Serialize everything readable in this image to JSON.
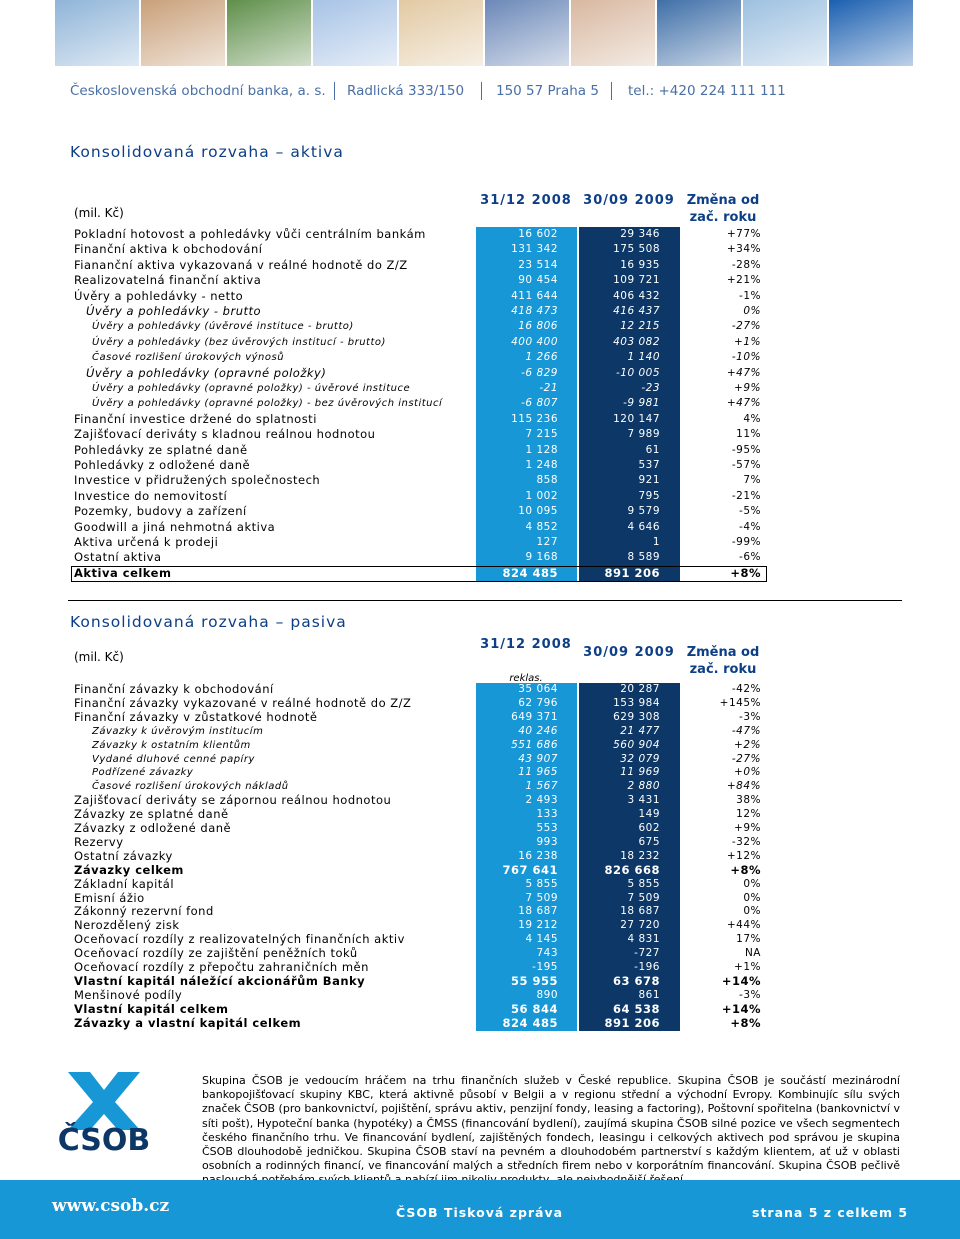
{
  "header": {
    "company": "Československá obchodní banka, a. s.",
    "address": "Radlická 333/150",
    "city": "150 57 Praha 5",
    "phone": "tel.: +420 224 111 111"
  },
  "assets": {
    "title": "Konsolidovaná rozvaha – aktiva",
    "columns": [
      "(mil. Kč)",
      "31/12 2008",
      "30/09 2009",
      "Změna od zač. roku"
    ],
    "rows": [
      [
        "Pokladní hotovost a pohledávky vůči centrálním bankám",
        "16 602",
        "29 346",
        "+77%"
      ],
      [
        "Finanční aktiva k obchodování",
        "131 342",
        "175 508",
        "+34%"
      ],
      [
        "Fiananční aktiva vykazovaná v reálné hodnotě do Z/Z",
        "23 514",
        "16 935",
        "-28%"
      ],
      [
        "Realizovatelná finanční aktiva",
        "90 454",
        "109 721",
        "+21%"
      ],
      [
        "Úvěry a pohledávky - netto",
        "411 644",
        "406 432",
        "-1%"
      ],
      [
        "Úvěry a pohledávky - brutto",
        "418 473",
        "416 437",
        "0%"
      ],
      [
        "Úvěry a pohledávky (úvěrové instituce - brutto)",
        "16 806",
        "12 215",
        "-27%"
      ],
      [
        "Úvěry a pohledávky (bez úvěrových institucí - brutto)",
        "400 400",
        "403 082",
        "+1%"
      ],
      [
        "Časové rozlišení úrokových výnosů",
        "1 266",
        "1 140",
        "-10%"
      ],
      [
        "Úvěry a pohledávky (opravné položky)",
        "-6 829",
        "-10 005",
        "+47%"
      ],
      [
        "Úvěry a pohledávky (opravné položky) - úvěrové instituce",
        "-21",
        "-23",
        "+9%"
      ],
      [
        "Úvěry a pohledávky (opravné položky) - bez úvěrových institucí",
        "-6 807",
        "-9 981",
        "+47%"
      ],
      [
        "Finanční investice držené do splatnosti",
        "115 236",
        "120 147",
        "4%"
      ],
      [
        "Zajišťovací deriváty s kladnou reálnou hodnotou",
        "7 215",
        "7 989",
        "11%"
      ],
      [
        "Pohledávky ze splatné daně",
        "1 128",
        "61",
        "-95%"
      ],
      [
        "Pohledávky z odložené daně",
        "1 248",
        "537",
        "-57%"
      ],
      [
        "Investice v přidružených společnostech",
        "858",
        "921",
        "7%"
      ],
      [
        "Investice do nemovitostí",
        "1 002",
        "795",
        "-21%"
      ],
      [
        "Pozemky, budovy a zařízení",
        "10 095",
        "9 579",
        "-5%"
      ],
      [
        "Goodwill a jiná nehmotná aktiva",
        "4 852",
        "4 646",
        "-4%"
      ],
      [
        "Aktiva určená k prodeji",
        "127",
        "1",
        "-99%"
      ],
      [
        "Ostatní aktiva",
        "9 168",
        "8 589",
        "-6%"
      ],
      [
        "Aktiva celkem",
        "824 485",
        "891 206",
        "+8%"
      ]
    ]
  },
  "liabilities": {
    "title": "Konsolidovaná rozvaha – pasiva",
    "columns": [
      "(mil. Kč)",
      "31/12 2008",
      "30/09 2009",
      "Změna od zač. roku"
    ],
    "column_note": "reklas.",
    "rows": [
      [
        "Finanční závazky k obchodování",
        "35 064",
        "20 287",
        "-42%"
      ],
      [
        "Finanční závazky vykazované v reálné hodnotě do Z/Z",
        "62 796",
        "153 984",
        "+145%"
      ],
      [
        "Finanční závazky v zůstatkové hodnotě",
        "649 371",
        "629 308",
        "-3%"
      ],
      [
        "Závazky k úvěrovým institucím",
        "40 246",
        "21 477",
        "-47%"
      ],
      [
        "Závazky k ostatním klientům",
        "551 686",
        "560 904",
        "+2%"
      ],
      [
        "Vydané dluhové cenné papíry",
        "43 907",
        "32 079",
        "-27%"
      ],
      [
        "Podřízené závazky",
        "11 965",
        "11 969",
        "+0%"
      ],
      [
        "Časové rozlišení úrokových nákladů",
        "1 567",
        "2 880",
        "+84%"
      ],
      [
        "Zajišťovací deriváty se zápornou reálnou hodnotou",
        "2 493",
        "3 431",
        "38%"
      ],
      [
        "Závazky ze splatné daně",
        "133",
        "149",
        "12%"
      ],
      [
        "Závazky z odložené daně",
        "553",
        "602",
        "+9%"
      ],
      [
        "Rezervy",
        "993",
        "675",
        "-32%"
      ],
      [
        "Ostatní závazky",
        "16 238",
        "18 232",
        "+12%"
      ],
      [
        "Závazky celkem",
        "767 641",
        "826 668",
        "+8%"
      ],
      [
        "Základní kapitál",
        "5 855",
        "5 855",
        "0%"
      ],
      [
        "Emisní ážio",
        "7 509",
        "7 509",
        "0%"
      ],
      [
        "Zákonný rezervní fond",
        "18 687",
        "18 687",
        "0%"
      ],
      [
        "Nerozdělený zisk",
        "19 212",
        "27 720",
        "+44%"
      ],
      [
        "Oceňovací rozdíly z realizovatelných finančních aktiv",
        "4 145",
        "4 831",
        "17%"
      ],
      [
        "Oceňovací rozdíly ze zajištění peněžních toků",
        "743",
        "-727",
        "NA"
      ],
      [
        "Oceňovací rozdíly z přepočtu zahraničních měn",
        "-195",
        "-196",
        "+1%"
      ],
      [
        "Vlastní kapitál náležící akcionářům Banky",
        "55 955",
        "63 678",
        "+14%"
      ],
      [
        "Menšinové podíly",
        "890",
        "861",
        "-3%"
      ],
      [
        "Vlastní kapitál celkem",
        "56 844",
        "64 538",
        "+14%"
      ],
      [
        "Závazky a vlastní kapitál celkem",
        "824 485",
        "891 206",
        "+8%"
      ]
    ]
  },
  "about": "Skupina ČSOB je vedoucím hráčem na trhu finančních služeb v České republice. Skupina ČSOB je součástí mezinárodní bankopojišťovací skupiny KBC, která aktivně působí v Belgii a v regionu střední a východní Evropy. Kombinujíc sílu svých značek ČSOB (pro bankovnictví, pojištění, správu aktiv, penzijní fondy, leasing a factoring), Poštovní spořitelna (bankovnictví v síti pošt), Hypoteční banka (hypotéky) a ČMSS (financování bydlení), zaujímá skupina ČSOB silné pozice ve všech segmentech českého finančního trhu. Ve financování bydlení, zajištěných fondech, leasingu i celkových aktivech pod správou je skupina ČSOB dlouhodobě jedničkou. Skupina ČSOB staví na pevném a dlouhodobém partnerství s každým klientem, ať už v oblasti osobních a rodinných financí, ve financování malých a středních firem nebo v korporátním financování. Skupina ČSOB pečlivě naslouchá potřebám svých klientů a nabízí jim nikoliv produkty, ale nejvhodnější řešení.",
  "logo": "ČSOB",
  "footer": {
    "website": "www.csob.cz",
    "label": "ČSOB Tisková zpráva",
    "page": "strana 5 z celkem 5"
  }
}
